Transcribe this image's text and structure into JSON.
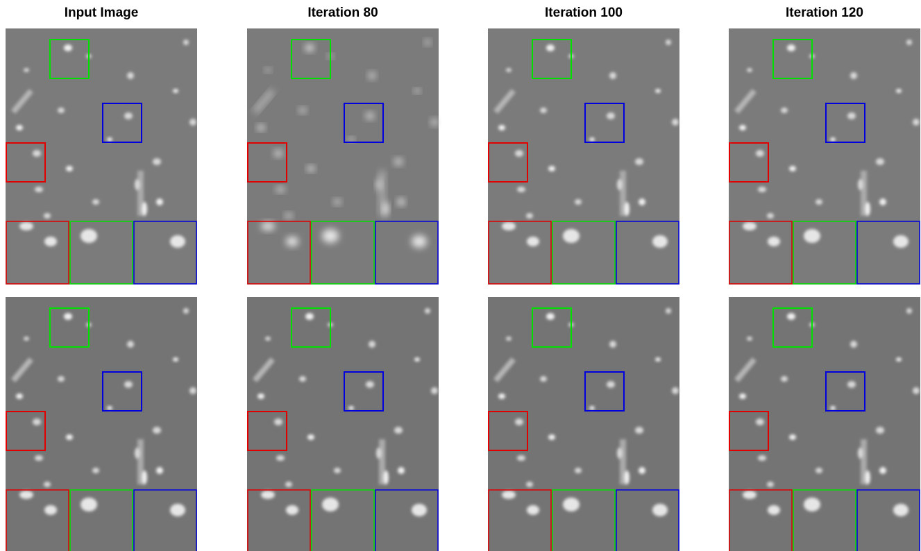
{
  "columns": [
    {
      "title": "Input Image"
    },
    {
      "title": "Iteration 80"
    },
    {
      "title": "Iteration 100"
    },
    {
      "title": "Iteration 120"
    }
  ]
}
